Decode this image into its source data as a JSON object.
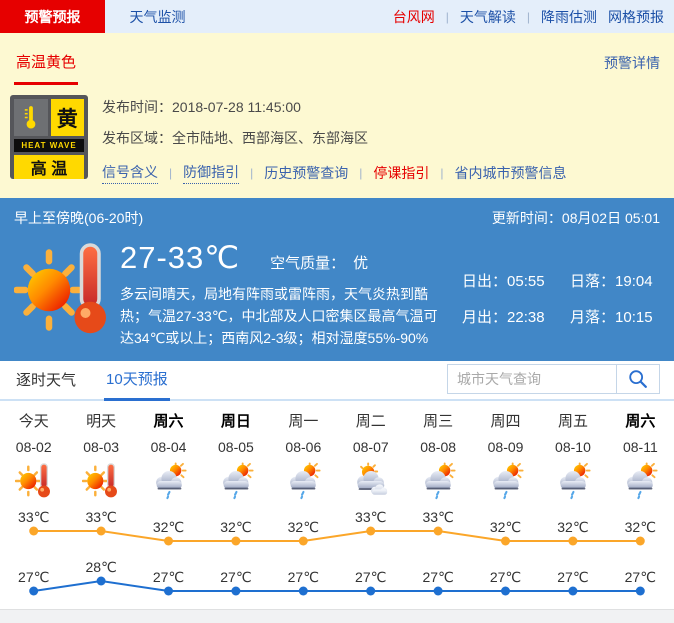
{
  "colors": {
    "alert_red": "#e60000",
    "nav_blue": "#1c50a7",
    "panel_yellow": "#fdf9d2",
    "badge_yellow": "#ffd900",
    "sky_blue": "#4187c7",
    "link_blue": "#3a62ad",
    "active_tab_blue": "#2a6fd0",
    "high_line_orange": "#fba629",
    "low_line_blue": "#1e6fd0"
  },
  "topnav": {
    "tabs": [
      {
        "label": "预警预报",
        "active": true
      },
      {
        "label": "天气监测",
        "active": false
      }
    ],
    "links": [
      {
        "label": "台风网",
        "accent": true
      },
      {
        "label": "天气解读"
      },
      {
        "label": "降雨估测"
      },
      {
        "label": "网格预报"
      }
    ],
    "separators_after": [
      0,
      1
    ]
  },
  "alert": {
    "type_label": "高温黄色",
    "detail_link": "预警详情",
    "badge": {
      "char": "黄",
      "band": "HEAT WAVE",
      "name": "高 温"
    },
    "publish_time_label": "发布时间：",
    "publish_time": "2018-07-28 11:45:00",
    "area_label": "发布区域：",
    "area": "全市陆地、西部海区、东部海区",
    "links": [
      {
        "label": "信号含义",
        "underline": true
      },
      {
        "label": "防御指引",
        "underline": true
      },
      {
        "label": "历史预警查询"
      },
      {
        "label": "停课指引",
        "accent": true
      },
      {
        "label": "省内城市预警信息"
      }
    ]
  },
  "current": {
    "period": "早上至傍晚(06-20时)",
    "update_label": "更新时间：",
    "update_time": "08月02日 05:01",
    "temp_range": "27-33℃",
    "air_label": "空气质量：",
    "air_value": "优",
    "description": "多云间晴天，局地有阵雨或雷阵雨，天气炎热到酷热；气温27-33℃，中北部及人口密集区最高气温可达34℃或以上；西南风2-3级；相对湿度55%-90%",
    "sun_moon": [
      {
        "label": "日出：",
        "value": "05:55"
      },
      {
        "label": "日落：",
        "value": "19:04"
      },
      {
        "label": "月出：",
        "value": "22:38"
      },
      {
        "label": "月落：",
        "value": "10:15"
      }
    ]
  },
  "forecast_tabs": {
    "hourly": "逐时天气",
    "ten_day": "10天预报"
  },
  "search": {
    "placeholder": "城市天气查询"
  },
  "chart_data": {
    "type": "line",
    "title": "10天预报",
    "categories": [
      "今天",
      "明天",
      "周六",
      "周日",
      "周一",
      "周二",
      "周三",
      "周四",
      "周五",
      "周六"
    ],
    "dates": [
      "08-02",
      "08-03",
      "08-04",
      "08-05",
      "08-06",
      "08-07",
      "08-08",
      "08-09",
      "08-10",
      "08-11"
    ],
    "weekend_bold": [
      false,
      false,
      true,
      true,
      false,
      false,
      false,
      false,
      false,
      true
    ],
    "icons": [
      "sun-thermometer",
      "sun-thermometer",
      "cloud-sun-rain",
      "cloud-sun-rain",
      "cloud-sun-rain",
      "cloudy",
      "cloud-sun-rain",
      "cloud-sun-rain",
      "cloud-sun-rain",
      "cloud-sun-rain"
    ],
    "unit": "℃",
    "series": [
      {
        "name": "high",
        "color": "#fba629",
        "values": [
          33,
          33,
          32,
          32,
          32,
          33,
          33,
          32,
          32,
          32
        ]
      },
      {
        "name": "low",
        "color": "#1e6fd0",
        "values": [
          27,
          28,
          27,
          27,
          27,
          27,
          27,
          27,
          27,
          27
        ]
      }
    ],
    "grid": false,
    "legend_position": "none"
  }
}
